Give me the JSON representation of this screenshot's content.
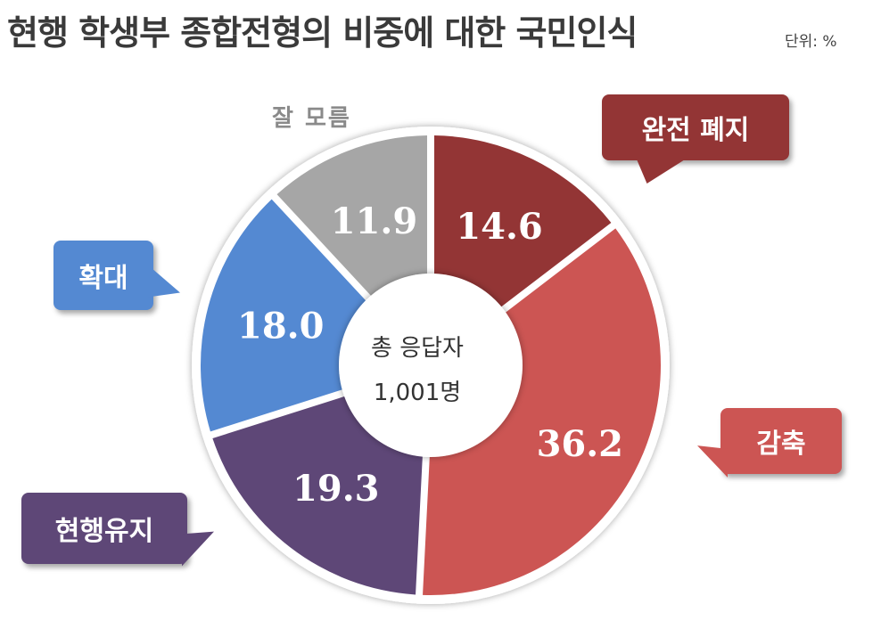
{
  "header": {
    "title": "현행 학생부 종합전형의 비중에 대한 국민인식",
    "unit": "단위: %"
  },
  "center": {
    "line1": "총 응답자",
    "line2": "1,001명"
  },
  "chart_data": {
    "type": "pie",
    "donut": true,
    "unit": "%",
    "slices": [
      {
        "label": "완전 폐지",
        "value": 14.6,
        "value_label": "14.6",
        "color": "#933535"
      },
      {
        "label": "감축",
        "value": 36.2,
        "value_label": "36.2",
        "color": "#cc5553"
      },
      {
        "label": "현행유지",
        "value": 19.3,
        "value_label": "19.3",
        "color": "#5e4777"
      },
      {
        "label": "확대",
        "value": 18.0,
        "value_label": "18.0",
        "color": "#5489d2"
      },
      {
        "label": "잘 모름",
        "value": 11.9,
        "value_label": "11.9",
        "color": "#a6a6a6"
      }
    ]
  }
}
